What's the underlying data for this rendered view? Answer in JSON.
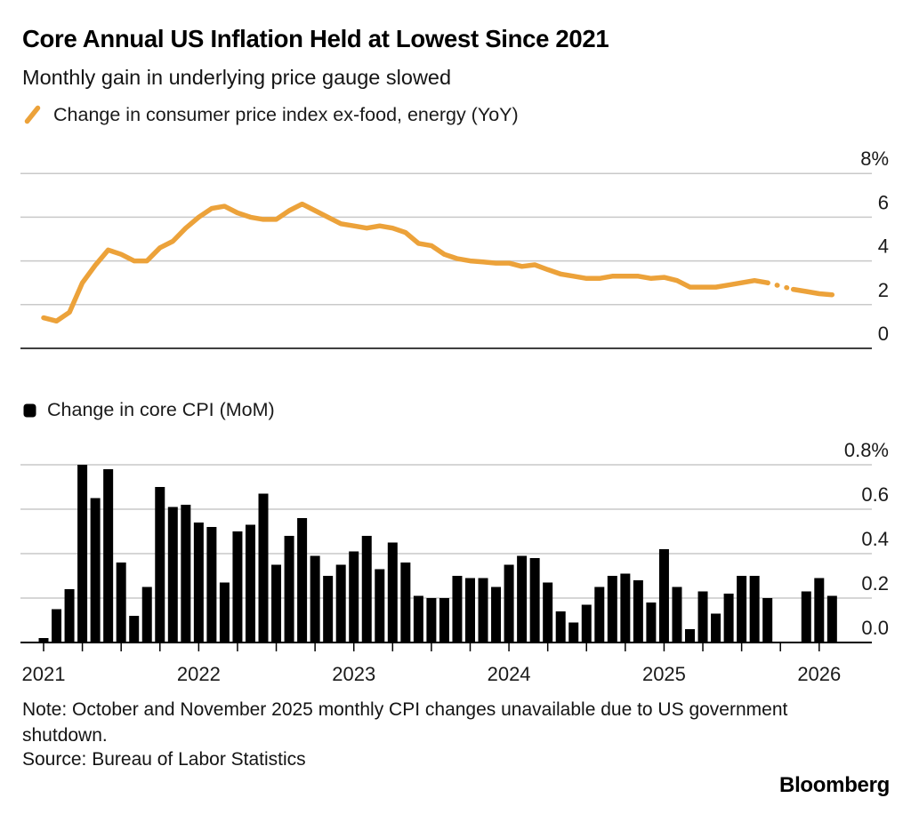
{
  "header": {
    "title": "Core Annual US Inflation Held at Lowest Since 2021",
    "subtitle": "Monthly gain in underlying price gauge slowed"
  },
  "footer": {
    "note": "Note: October and November 2025 monthly CPI changes unavailable due to US government shutdown.",
    "source": "Source: Bureau of Labor Statistics",
    "brand": "Bloomberg"
  },
  "colors": {
    "line": "#ECA23A",
    "bar": "#000000",
    "grid": "#C9C9C9",
    "axis_dark": "#3F3F3F",
    "axis_black": "#000000",
    "text": "#1A1A1A"
  },
  "chart_data": [
    {
      "type": "line",
      "title": "Change in consumer price index ex-food, energy (YoY)",
      "unit": "%",
      "ylim": [
        0,
        8
      ],
      "grid": true,
      "legend_position": "top-left",
      "y_ticks": [
        {
          "label": "8%",
          "value": 8
        },
        {
          "label": "6",
          "value": 6
        },
        {
          "label": "4",
          "value": 4
        },
        {
          "label": "2",
          "value": 2
        },
        {
          "label": "0",
          "value": 0
        }
      ],
      "x": [
        "2021-01",
        "2021-02",
        "2021-03",
        "2021-04",
        "2021-05",
        "2021-06",
        "2021-07",
        "2021-08",
        "2021-09",
        "2021-10",
        "2021-11",
        "2021-12",
        "2022-01",
        "2022-02",
        "2022-03",
        "2022-04",
        "2022-05",
        "2022-06",
        "2022-07",
        "2022-08",
        "2022-09",
        "2022-10",
        "2022-11",
        "2022-12",
        "2023-01",
        "2023-02",
        "2023-03",
        "2023-04",
        "2023-05",
        "2023-06",
        "2023-07",
        "2023-08",
        "2023-09",
        "2023-10",
        "2023-11",
        "2023-12",
        "2024-01",
        "2024-02",
        "2024-03",
        "2024-04",
        "2024-05",
        "2024-06",
        "2024-07",
        "2024-08",
        "2024-09",
        "2024-10",
        "2024-11",
        "2024-12",
        "2025-01",
        "2025-02",
        "2025-03",
        "2025-04",
        "2025-05",
        "2025-06",
        "2025-07",
        "2025-08",
        "2025-09",
        "2025-10",
        "2025-11",
        "2025-12",
        "2026-01",
        "2026-02"
      ],
      "values": [
        1.4,
        1.25,
        1.65,
        3.0,
        3.8,
        4.5,
        4.3,
        4.0,
        4.0,
        4.6,
        4.9,
        5.5,
        6.0,
        6.4,
        6.5,
        6.2,
        6.0,
        5.9,
        5.9,
        6.3,
        6.6,
        6.3,
        6.0,
        5.7,
        5.6,
        5.5,
        5.6,
        5.5,
        5.3,
        4.8,
        4.7,
        4.3,
        4.1,
        4.0,
        3.95,
        3.9,
        3.9,
        3.75,
        3.82,
        3.6,
        3.4,
        3.3,
        3.2,
        3.2,
        3.3,
        3.3,
        3.3,
        3.2,
        3.25,
        3.1,
        2.8,
        2.8,
        2.8,
        2.9,
        3.0,
        3.1,
        3.0,
        2.85,
        2.7,
        2.6,
        2.5,
        2.45
      ],
      "missing_months": [
        "2025-10"
      ],
      "interpolated_values": {
        "2025-10": 2.85
      },
      "dashed_gap": {
        "from": "2025-09",
        "to": "2025-11"
      }
    },
    {
      "type": "bar",
      "title": "Change in core CPI (MoM)",
      "unit": "%",
      "ylim": [
        0,
        0.8
      ],
      "grid": true,
      "legend_position": "top-left",
      "y_ticks": [
        {
          "label": "0.8%",
          "value": 0.8
        },
        {
          "label": "0.6",
          "value": 0.6
        },
        {
          "label": "0.4",
          "value": 0.4
        },
        {
          "label": "0.2",
          "value": 0.2
        },
        {
          "label": "0.0",
          "value": 0.0
        }
      ],
      "x": [
        "2021-01",
        "2021-02",
        "2021-03",
        "2021-04",
        "2021-05",
        "2021-06",
        "2021-07",
        "2021-08",
        "2021-09",
        "2021-10",
        "2021-11",
        "2021-12",
        "2022-01",
        "2022-02",
        "2022-03",
        "2022-04",
        "2022-05",
        "2022-06",
        "2022-07",
        "2022-08",
        "2022-09",
        "2022-10",
        "2022-11",
        "2022-12",
        "2023-01",
        "2023-02",
        "2023-03",
        "2023-04",
        "2023-05",
        "2023-06",
        "2023-07",
        "2023-08",
        "2023-09",
        "2023-10",
        "2023-11",
        "2023-12",
        "2024-01",
        "2024-02",
        "2024-03",
        "2024-04",
        "2024-05",
        "2024-06",
        "2024-07",
        "2024-08",
        "2024-09",
        "2024-10",
        "2024-11",
        "2024-12",
        "2025-01",
        "2025-02",
        "2025-03",
        "2025-04",
        "2025-05",
        "2025-06",
        "2025-07",
        "2025-08",
        "2025-09",
        "2025-10",
        "2025-11",
        "2025-12",
        "2026-01",
        "2026-02"
      ],
      "values": [
        0.02,
        0.15,
        0.24,
        0.8,
        0.65,
        0.78,
        0.36,
        0.12,
        0.25,
        0.7,
        0.61,
        0.62,
        0.54,
        0.52,
        0.27,
        0.5,
        0.53,
        0.67,
        0.35,
        0.48,
        0.56,
        0.39,
        0.3,
        0.35,
        0.41,
        0.48,
        0.33,
        0.45,
        0.36,
        0.21,
        0.2,
        0.2,
        0.3,
        0.29,
        0.29,
        0.25,
        0.35,
        0.39,
        0.38,
        0.27,
        0.14,
        0.09,
        0.17,
        0.25,
        0.3,
        0.31,
        0.28,
        0.18,
        0.42,
        0.25,
        0.06,
        0.23,
        0.13,
        0.22,
        0.3,
        0.3,
        0.2,
        null,
        null,
        0.23,
        0.29,
        0.21
      ],
      "missing_months": [
        "2025-10",
        "2025-11"
      ],
      "x_year_labels": [
        "2021",
        "2022",
        "2023",
        "2024",
        "2025",
        "2026"
      ],
      "x_year_label_month_indices": [
        0,
        12,
        24,
        36,
        48,
        60
      ]
    }
  ]
}
